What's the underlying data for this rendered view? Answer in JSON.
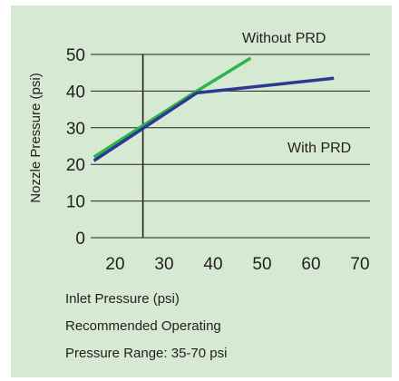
{
  "chart_data": {
    "type": "line",
    "ylabel": "Nozzle Pressure (psi)",
    "xlabel": "Inlet Pressure (psi)",
    "x_ticks": [
      20,
      30,
      40,
      50,
      60,
      70
    ],
    "y_ticks": [
      0,
      10,
      20,
      30,
      40,
      50
    ],
    "xlim": [
      17,
      74
    ],
    "ylim": [
      0,
      52
    ],
    "grid": "horizontal",
    "reference_line_x": 29,
    "series": [
      {
        "name": "Without PRD",
        "color": "#2fb34a",
        "points": [
          [
            19,
            22
          ],
          [
            40,
            40
          ],
          [
            51,
            49
          ]
        ]
      },
      {
        "name": "With PRD",
        "color": "#2b3990",
        "points": [
          [
            19,
            21
          ],
          [
            40,
            39.5
          ],
          [
            68,
            43.5
          ]
        ]
      }
    ],
    "annotations": [
      "Without PRD",
      "With PRD"
    ]
  },
  "footer": {
    "line1": "Inlet Pressure (psi)",
    "line2": "Recommended Operating",
    "line3": "Pressure Range: 35-70 psi"
  }
}
